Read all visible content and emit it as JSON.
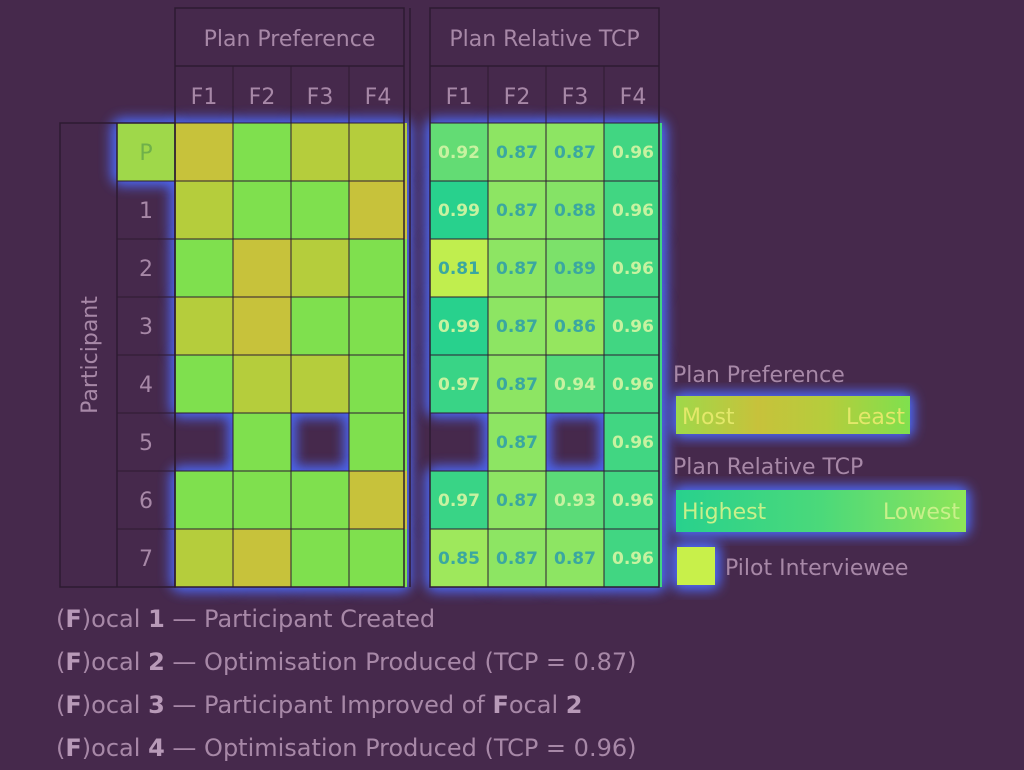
{
  "chart_data": {
    "type": "heatmap",
    "row_axis_label": "Participant",
    "rows": [
      "P",
      "1",
      "2",
      "3",
      "4",
      "5",
      "6",
      "7"
    ],
    "columns": [
      "F1",
      "F2",
      "F3",
      "F4"
    ],
    "panels": [
      {
        "title": "Plan Preference",
        "scale": "rank",
        "legend_low": "Most",
        "legend_high": "Least",
        "values": [
          [
            1,
            3,
            2,
            2
          ],
          [
            2,
            3,
            3,
            1
          ],
          [
            3,
            1,
            2,
            3
          ],
          [
            2,
            1,
            3,
            3
          ],
          [
            3,
            2,
            2,
            3
          ],
          [
            null,
            3,
            null,
            3
          ],
          [
            3,
            3,
            3,
            1
          ],
          [
            2,
            1,
            3,
            3
          ]
        ]
      },
      {
        "title": "Plan Relative TCP",
        "scale": "tcp",
        "legend_low": "Highest",
        "legend_high": "Lowest",
        "labels": [
          [
            "0.92",
            "0.87",
            "0.87",
            "0.96"
          ],
          [
            "0.99",
            "0.87",
            "0.88",
            "0.96"
          ],
          [
            "0.81",
            "0.87",
            "0.89",
            "0.96"
          ],
          [
            "0.99",
            "0.87",
            "0.86",
            "0.96"
          ],
          [
            "0.97",
            "0.87",
            "0.94",
            "0.96"
          ],
          [
            null,
            "0.87",
            null,
            "0.96"
          ],
          [
            "0.97",
            "0.87",
            "0.93",
            "0.96"
          ],
          [
            "0.85",
            "0.87",
            "0.87",
            "0.96"
          ]
        ]
      }
    ],
    "legend": {
      "pilot_label": "Pilot Interviewee",
      "pilot_row": "P"
    }
  },
  "footnotes": [
    {
      "prefix": "F",
      "word": "ocal",
      "num": "1",
      "dash": "—",
      "text": "Participant Created"
    },
    {
      "prefix": "F",
      "word": "ocal",
      "num": "2",
      "dash": "—",
      "text": "Optimisation Produced (TCP = 0.87)"
    },
    {
      "prefix": "F",
      "word": "ocal",
      "num": "3",
      "dash": "—",
      "text_a": "Participant Improved of ",
      "text_b": "F",
      "text_c": "ocal ",
      "text_d": "2"
    },
    {
      "prefix": "F",
      "word": "ocal",
      "num": "4",
      "dash": "—",
      "text": "Optimisation Produced (TCP = 0.96)"
    }
  ],
  "colors": {
    "background": "#46294c",
    "grid_line": "#2d1a31",
    "header_text": "#a788a7",
    "glow": "#4d6cff",
    "rank_colors": [
      "#c7c23b",
      "#b5cd3c",
      "#7fe04e"
    ],
    "tcp_low": "#c8f04a",
    "tcp_high": "#28d18d"
  }
}
